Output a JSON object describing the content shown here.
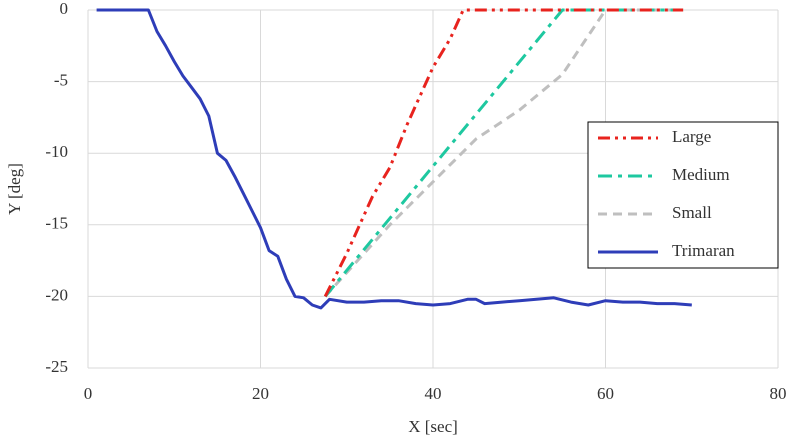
{
  "chart_data": {
    "type": "line",
    "xlabel": "X [sec]",
    "ylabel": "Y [deg]",
    "xlim": [
      0,
      80
    ],
    "xticks": [
      0,
      20,
      40,
      60,
      80
    ],
    "ylim": [
      -25,
      0
    ],
    "yticks": [
      -25,
      -20,
      -15,
      -10,
      -5,
      0
    ],
    "grid": true,
    "legend": "right",
    "series": [
      {
        "name": "Large",
        "color": "#e8231e",
        "dash": "dash-dot-dot",
        "x": [
          27.5,
          30,
          33,
          35,
          37,
          40,
          42,
          43.5,
          69
        ],
        "values": [
          -20,
          -17,
          -13,
          -11,
          -8,
          -4,
          -2,
          0,
          0
        ]
      },
      {
        "name": "Medium",
        "color": "#1ec8a0",
        "dash": "dash-dot",
        "x": [
          27.5,
          55,
          69
        ],
        "values": [
          -20,
          0,
          0
        ]
      },
      {
        "name": "Small",
        "color": "#bfbfbf",
        "dash": "dash",
        "x": [
          27.5,
          35,
          45,
          50,
          55,
          60,
          69
        ],
        "values": [
          -20,
          -15,
          -9,
          -7,
          -4.5,
          0,
          0
        ]
      },
      {
        "name": "Trimaran",
        "color": "#2e3db8",
        "dash": "solid",
        "x": [
          1,
          7,
          8,
          9,
          10,
          11,
          12,
          13,
          14,
          15,
          16,
          17,
          18,
          19,
          20,
          21,
          22,
          23,
          24,
          25,
          26,
          27,
          28,
          30,
          32,
          34,
          36,
          38,
          40,
          42,
          44,
          45,
          46,
          48,
          50,
          52,
          54,
          56,
          58,
          60,
          62,
          64,
          66,
          68,
          70
        ],
        "values": [
          0,
          0,
          -1.5,
          -2.5,
          -3.6,
          -4.6,
          -5.4,
          -6.2,
          -7.4,
          -10,
          -10.5,
          -11.6,
          -12.8,
          -14,
          -15.2,
          -16.8,
          -17.2,
          -18.8,
          -20,
          -20.1,
          -20.6,
          -20.8,
          -20.2,
          -20.4,
          -20.4,
          -20.3,
          -20.3,
          -20.5,
          -20.6,
          -20.5,
          -20.2,
          -20.2,
          -20.5,
          -20.4,
          -20.3,
          -20.2,
          -20.1,
          -20.4,
          -20.6,
          -20.3,
          -20.4,
          -20.4,
          -20.5,
          -20.5,
          -20.6
        ]
      }
    ]
  }
}
